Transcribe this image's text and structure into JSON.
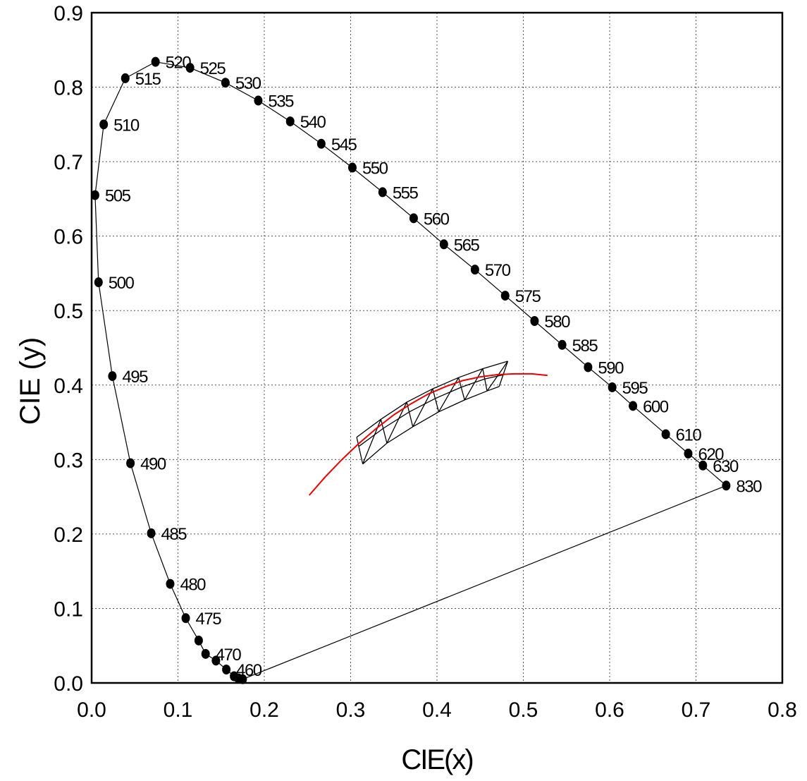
{
  "chart_data": {
    "type": "scatter",
    "xlabel": "CIE(x)",
    "ylabel": "CIE (y)",
    "xlim": [
      0.0,
      0.8
    ],
    "ylim": [
      0.0,
      0.9
    ],
    "grid": true,
    "x_ticks": [
      "0.0",
      "0.1",
      "0.2",
      "0.3",
      "0.4",
      "0.5",
      "0.6",
      "0.7",
      "0.8"
    ],
    "y_ticks": [
      "0.0",
      "0.1",
      "0.2",
      "0.3",
      "0.4",
      "0.5",
      "0.6",
      "0.7",
      "0.8",
      "0.9"
    ],
    "colors": {
      "frame": "#000000",
      "locus": "#000000",
      "planckian_locus": "#e60000",
      "mesh": "#000000"
    },
    "spectral_locus": [
      {
        "label": "",
        "x": 0.175,
        "y": 0.005
      },
      {
        "label": "",
        "x": 0.17,
        "y": 0.006
      },
      {
        "label": "",
        "x": 0.165,
        "y": 0.009
      },
      {
        "label": "460",
        "x": 0.156,
        "y": 0.018
      },
      {
        "label": "",
        "x": 0.144,
        "y": 0.03
      },
      {
        "label": "470",
        "x": 0.132,
        "y": 0.039
      },
      {
        "label": "",
        "x": 0.124,
        "y": 0.057
      },
      {
        "label": "475",
        "x": 0.109,
        "y": 0.087
      },
      {
        "label": "480",
        "x": 0.091,
        "y": 0.133
      },
      {
        "label": "485",
        "x": 0.069,
        "y": 0.201
      },
      {
        "label": "490",
        "x": 0.045,
        "y": 0.295
      },
      {
        "label": "495",
        "x": 0.024,
        "y": 0.412
      },
      {
        "label": "500",
        "x": 0.008,
        "y": 0.538
      },
      {
        "label": "505",
        "x": 0.004,
        "y": 0.655
      },
      {
        "label": "510",
        "x": 0.014,
        "y": 0.75
      },
      {
        "label": "515",
        "x": 0.039,
        "y": 0.812
      },
      {
        "label": "520",
        "x": 0.074,
        "y": 0.834
      },
      {
        "label": "525",
        "x": 0.114,
        "y": 0.826
      },
      {
        "label": "530",
        "x": 0.155,
        "y": 0.806
      },
      {
        "label": "535",
        "x": 0.193,
        "y": 0.782
      },
      {
        "label": "540",
        "x": 0.23,
        "y": 0.754
      },
      {
        "label": "545",
        "x": 0.266,
        "y": 0.724
      },
      {
        "label": "550",
        "x": 0.302,
        "y": 0.692
      },
      {
        "label": "555",
        "x": 0.337,
        "y": 0.659
      },
      {
        "label": "560",
        "x": 0.373,
        "y": 0.624
      },
      {
        "label": "565",
        "x": 0.408,
        "y": 0.589
      },
      {
        "label": "570",
        "x": 0.444,
        "y": 0.555
      },
      {
        "label": "575",
        "x": 0.479,
        "y": 0.52
      },
      {
        "label": "580",
        "x": 0.513,
        "y": 0.486
      },
      {
        "label": "585",
        "x": 0.545,
        "y": 0.454
      },
      {
        "label": "590",
        "x": 0.575,
        "y": 0.424
      },
      {
        "label": "595",
        "x": 0.603,
        "y": 0.397
      },
      {
        "label": "600",
        "x": 0.627,
        "y": 0.372
      },
      {
        "label": "610",
        "x": 0.665,
        "y": 0.334
      },
      {
        "label": "620",
        "x": 0.691,
        "y": 0.308
      },
      {
        "label": "630",
        "x": 0.708,
        "y": 0.292
      },
      {
        "label": "830",
        "x": 0.735,
        "y": 0.265
      }
    ],
    "planckian_locus": [
      [
        0.252,
        0.252
      ],
      [
        0.27,
        0.276
      ],
      [
        0.29,
        0.3
      ],
      [
        0.31,
        0.322
      ],
      [
        0.33,
        0.342
      ],
      [
        0.35,
        0.36
      ],
      [
        0.37,
        0.375
      ],
      [
        0.39,
        0.388
      ],
      [
        0.41,
        0.398
      ],
      [
        0.43,
        0.406
      ],
      [
        0.45,
        0.411
      ],
      [
        0.47,
        0.414
      ],
      [
        0.49,
        0.415
      ],
      [
        0.51,
        0.415
      ],
      [
        0.528,
        0.413
      ]
    ],
    "mesh": {
      "upper": [
        [
          0.307,
          0.33
        ],
        [
          0.335,
          0.354
        ],
        [
          0.365,
          0.377
        ],
        [
          0.395,
          0.395
        ],
        [
          0.425,
          0.41
        ],
        [
          0.453,
          0.422
        ],
        [
          0.482,
          0.432
        ]
      ],
      "middle": [
        [
          0.31,
          0.318
        ],
        [
          0.338,
          0.342
        ],
        [
          0.368,
          0.364
        ],
        [
          0.398,
          0.382
        ],
        [
          0.428,
          0.397
        ],
        [
          0.455,
          0.408
        ],
        [
          0.478,
          0.414
        ]
      ],
      "lower": [
        [
          0.314,
          0.294
        ],
        [
          0.342,
          0.322
        ],
        [
          0.372,
          0.344
        ],
        [
          0.402,
          0.364
        ],
        [
          0.432,
          0.38
        ],
        [
          0.458,
          0.392
        ],
        [
          0.472,
          0.398
        ]
      ]
    }
  }
}
